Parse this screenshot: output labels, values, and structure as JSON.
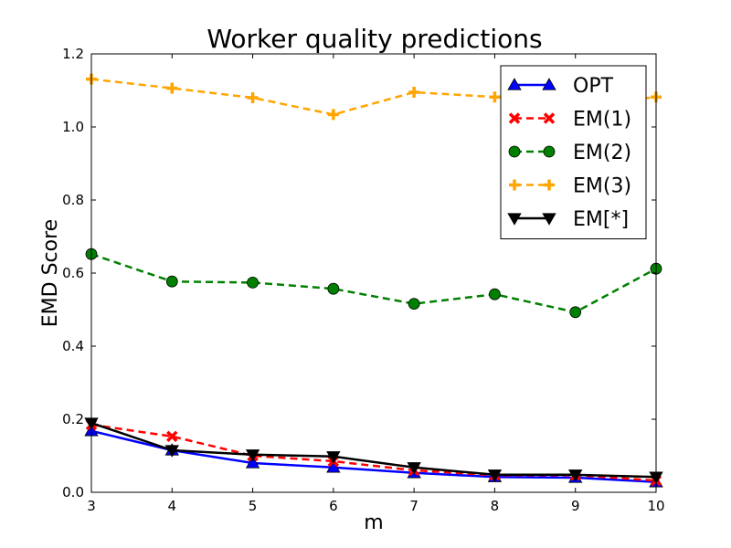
{
  "chart_data": {
    "type": "line",
    "title": "Worker quality predictions",
    "xlabel": "m",
    "ylabel": "EMD Score",
    "xlim": [
      3,
      10
    ],
    "ylim": [
      0.0,
      1.2
    ],
    "x": [
      3,
      4,
      5,
      6,
      7,
      8,
      9,
      10
    ],
    "xticks": [
      "3",
      "4",
      "5",
      "6",
      "7",
      "8",
      "9",
      "10"
    ],
    "yticks": [
      "0.0",
      "0.2",
      "0.4",
      "0.6",
      "0.8",
      "1.0",
      "1.2"
    ],
    "grid": false,
    "legend_position": "top-right",
    "series": [
      {
        "name": "OPT",
        "color": "#0000ff",
        "dash": "solid",
        "marker": "triangle-up",
        "values": [
          0.168,
          0.115,
          0.08,
          0.068,
          0.053,
          0.042,
          0.04,
          0.028
        ]
      },
      {
        "name": "EM(1)",
        "color": "#ff0000",
        "dash": "dashed",
        "marker": "x",
        "values": [
          0.185,
          0.153,
          0.1,
          0.085,
          0.06,
          0.047,
          0.047,
          0.032
        ]
      },
      {
        "name": "EM(2)",
        "color": "#008000",
        "dash": "dashed",
        "marker": "circle",
        "values": [
          0.652,
          0.577,
          0.574,
          0.557,
          0.516,
          0.542,
          0.493,
          0.612
        ]
      },
      {
        "name": "EM(3)",
        "color": "#ffa500",
        "dash": "dashed",
        "marker": "plus",
        "values": [
          1.131,
          1.106,
          1.08,
          1.034,
          1.095,
          1.082,
          1.056,
          1.082
        ]
      },
      {
        "name": "EM[*]",
        "color": "#000000",
        "dash": "solid",
        "marker": "triangle-down",
        "values": [
          0.19,
          0.115,
          0.103,
          0.098,
          0.068,
          0.048,
          0.048,
          0.042
        ]
      }
    ]
  }
}
